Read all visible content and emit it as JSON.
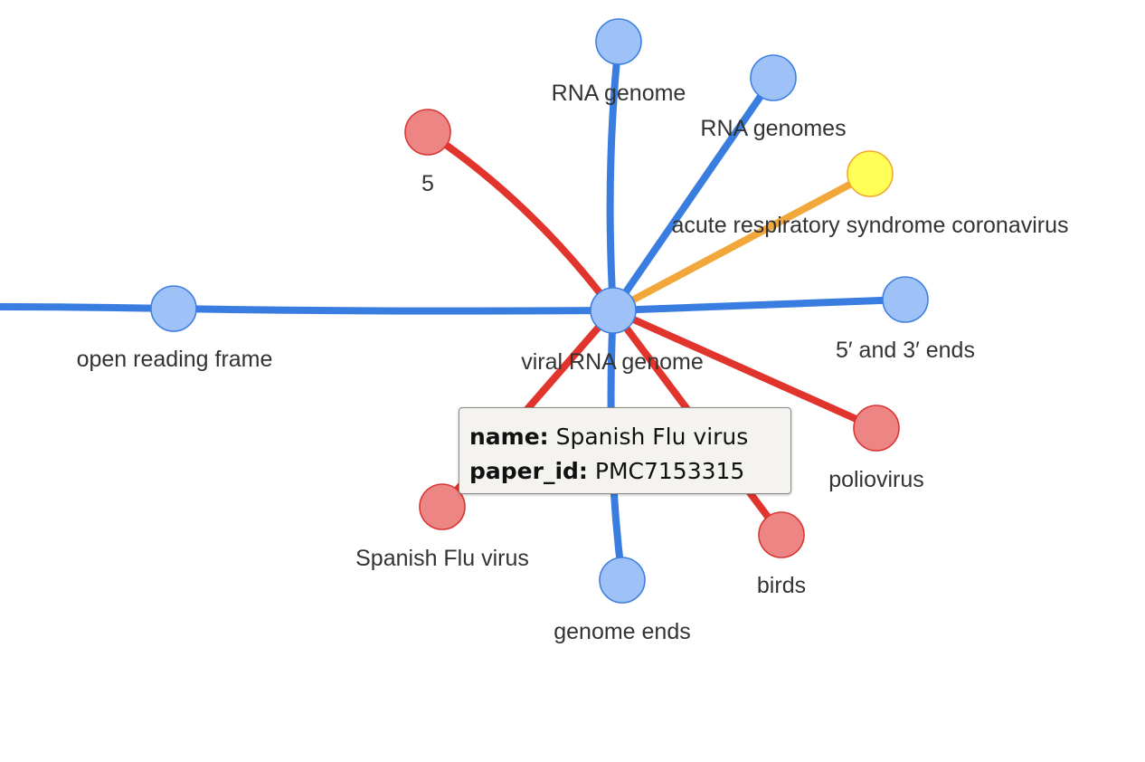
{
  "graph": {
    "center": {
      "id": "viral_rna_genome",
      "label": "viral RNA genome",
      "color": "blue"
    },
    "nodes": [
      {
        "id": "rna_genome",
        "label": "RNA genome",
        "color": "blue"
      },
      {
        "id": "rna_genomes",
        "label": "RNA genomes",
        "color": "blue"
      },
      {
        "id": "five",
        "label": "5",
        "color": "red"
      },
      {
        "id": "acute_resp",
        "label": "acute respiratory syndrome coronavirus",
        "color": "yellow"
      },
      {
        "id": "five_three_ends",
        "label": "5′ and 3′ ends",
        "color": "blue"
      },
      {
        "id": "poliovirus",
        "label": "poliovirus",
        "color": "red"
      },
      {
        "id": "birds",
        "label": "birds",
        "color": "red"
      },
      {
        "id": "genome_ends",
        "label": "genome ends",
        "color": "blue"
      },
      {
        "id": "spanish_flu",
        "label": "Spanish Flu virus",
        "color": "red"
      },
      {
        "id": "open_reading_frame",
        "label": "open reading frame",
        "color": "blue"
      }
    ],
    "edges": [
      {
        "source": "viral_rna_genome",
        "target": "rna_genome",
        "color": "blue"
      },
      {
        "source": "viral_rna_genome",
        "target": "rna_genomes",
        "color": "blue"
      },
      {
        "source": "viral_rna_genome",
        "target": "five",
        "color": "red"
      },
      {
        "source": "viral_rna_genome",
        "target": "acute_resp",
        "color": "orange"
      },
      {
        "source": "viral_rna_genome",
        "target": "five_three_ends",
        "color": "blue"
      },
      {
        "source": "viral_rna_genome",
        "target": "poliovirus",
        "color": "red"
      },
      {
        "source": "viral_rna_genome",
        "target": "birds",
        "color": "red"
      },
      {
        "source": "viral_rna_genome",
        "target": "genome_ends",
        "color": "blue"
      },
      {
        "source": "viral_rna_genome",
        "target": "spanish_flu",
        "color": "red"
      },
      {
        "source": "viral_rna_genome",
        "target": "open_reading_frame",
        "color": "blue"
      },
      {
        "source": "open_reading_frame",
        "target": "offscreen",
        "color": "blue"
      }
    ]
  },
  "palette": {
    "blue": {
      "fill": "#9ec2f7",
      "stroke": "#3f7fe0",
      "edge": "#3a7de0"
    },
    "red": {
      "fill": "#ee8585",
      "stroke": "#d93636",
      "edge": "#e0342c"
    },
    "yellow": {
      "fill": "#ffff55",
      "stroke": "#f0a830",
      "edge": "#f2a73b"
    },
    "orange": {
      "edge": "#f2a73b"
    },
    "label": "#333333"
  },
  "tooltip": {
    "name_key": "name:",
    "name_value": "Spanish Flu virus",
    "paper_key": "paper_id:",
    "paper_value": "PMC7153315"
  }
}
